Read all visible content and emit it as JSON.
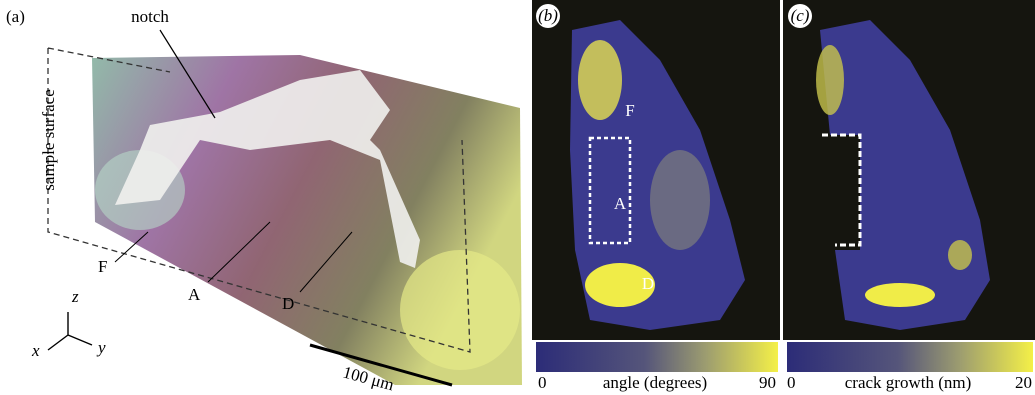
{
  "panel_a": {
    "label": "(a)",
    "notch": "notch",
    "surface": "sample surface",
    "grains": [
      "F",
      "A",
      "D"
    ],
    "axes": {
      "z": "z",
      "x": "x",
      "y": "y"
    },
    "scale_bar": "100 μm"
  },
  "panel_b": {
    "label": "(b)",
    "grains": [
      "F",
      "A",
      "D"
    ],
    "colorbar": {
      "min": 0,
      "max": 90,
      "label": "angle (degrees)"
    }
  },
  "panel_c": {
    "label": "(c)",
    "colorbar": {
      "min": 0,
      "max": 20,
      "label": "crack growth (nm)"
    }
  }
}
